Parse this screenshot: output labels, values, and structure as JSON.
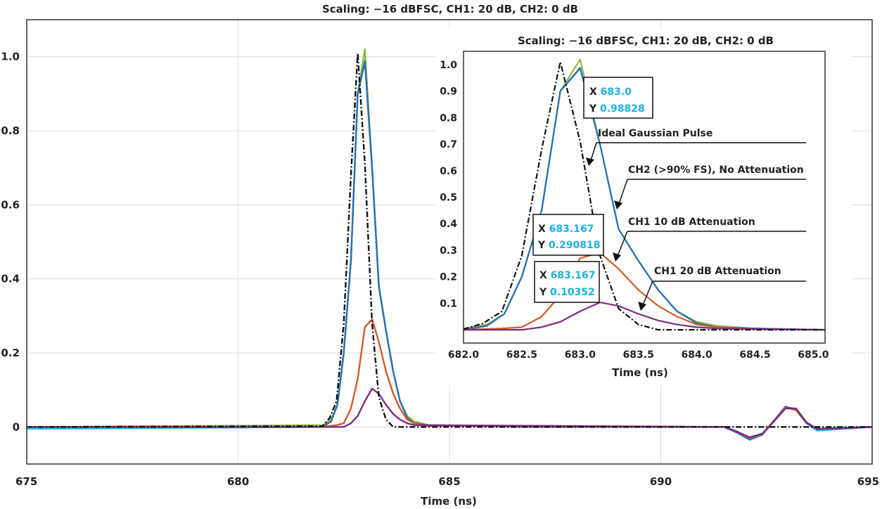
{
  "chart_data": [
    {
      "type": "line",
      "title": "Scaling: −16 dBFSC, CH1: 20 dB, CH2: 0 dB",
      "xlabel": "Time (ns)",
      "ylabel": "",
      "xlim": [
        675,
        695
      ],
      "ylim": [
        -0.1,
        1.1
      ],
      "x_ticks": [
        "675",
        "680",
        "685",
        "690",
        "695"
      ],
      "y_ticks": [
        "0",
        "0.2",
        "0.4",
        "0.6",
        "0.8",
        "1.0"
      ],
      "grid": true,
      "series": [
        {
          "color": "#8dba3c",
          "dash": "solid",
          "points": [
            [
              675,
              0
            ],
            [
              682,
              0.005
            ],
            [
              682.2,
              0.02
            ],
            [
              682.35,
              0.06
            ],
            [
              682.5,
              0.2
            ],
            [
              682.67,
              0.45
            ],
            [
              682.83,
              0.9
            ],
            [
              683.0,
              1.02
            ],
            [
              683.17,
              0.7
            ],
            [
              683.33,
              0.38
            ],
            [
              683.5,
              0.26
            ],
            [
              683.67,
              0.15
            ],
            [
              683.83,
              0.07
            ],
            [
              684.0,
              0.03
            ],
            [
              684.17,
              0.015
            ],
            [
              684.5,
              0.005
            ],
            [
              687,
              0.0
            ],
            [
              691.5,
              0
            ],
            [
              691.8,
              -0.015
            ],
            [
              692.1,
              -0.032
            ],
            [
              692.4,
              -0.02
            ],
            [
              692.7,
              0.02
            ],
            [
              692.95,
              0.055
            ],
            [
              693.2,
              0.045
            ],
            [
              693.45,
              0.01
            ],
            [
              693.7,
              -0.005
            ],
            [
              695,
              0
            ]
          ]
        },
        {
          "color": "#20b8e8",
          "dash": "solid",
          "points": [
            [
              675,
              -0.005
            ],
            [
              682,
              0.0
            ],
            [
              682.2,
              0.015
            ],
            [
              682.35,
              0.06
            ],
            [
              682.5,
              0.2
            ],
            [
              682.67,
              0.45
            ],
            [
              682.83,
              0.9
            ],
            [
              683.0,
              0.985
            ],
            [
              683.17,
              0.7
            ],
            [
              683.33,
              0.38
            ],
            [
              683.5,
              0.26
            ],
            [
              683.67,
              0.15
            ],
            [
              683.83,
              0.07
            ],
            [
              684.0,
              0.025
            ],
            [
              684.17,
              0.01
            ],
            [
              684.5,
              0.005
            ],
            [
              687,
              0.0
            ],
            [
              691.5,
              0
            ],
            [
              691.8,
              -0.015
            ],
            [
              692.1,
              -0.035
            ],
            [
              692.4,
              -0.022
            ],
            [
              692.7,
              0.02
            ],
            [
              692.95,
              0.055
            ],
            [
              693.2,
              0.048
            ],
            [
              693.45,
              0.01
            ],
            [
              693.7,
              -0.01
            ],
            [
              695,
              0
            ]
          ]
        },
        {
          "color": "#2f6fad",
          "dash": "solid",
          "points": [
            [
              675,
              0
            ],
            [
              682,
              0.0
            ],
            [
              682.2,
              0.015
            ],
            [
              682.35,
              0.06
            ],
            [
              682.5,
              0.2
            ],
            [
              682.67,
              0.45
            ],
            [
              682.83,
              0.9
            ],
            [
              683.0,
              0.98828
            ],
            [
              683.17,
              0.7
            ],
            [
              683.33,
              0.38
            ],
            [
              683.5,
              0.26
            ],
            [
              683.67,
              0.15
            ],
            [
              683.83,
              0.07
            ],
            [
              684.0,
              0.025
            ],
            [
              684.17,
              0.01
            ],
            [
              684.5,
              0.005
            ],
            [
              687,
              0.0
            ],
            [
              691.5,
              0
            ],
            [
              691.8,
              -0.015
            ],
            [
              692.1,
              -0.033
            ],
            [
              692.4,
              -0.02
            ],
            [
              692.7,
              0.02
            ],
            [
              692.95,
              0.055
            ],
            [
              693.2,
              0.046
            ],
            [
              693.45,
              0.01
            ],
            [
              693.7,
              -0.006
            ],
            [
              695,
              0
            ]
          ]
        },
        {
          "color": "#d05a2a",
          "dash": "solid",
          "points": [
            [
              675,
              0
            ],
            [
              682,
              0
            ],
            [
              682.33,
              0.005
            ],
            [
              682.5,
              0.01
            ],
            [
              682.67,
              0.05
            ],
            [
              682.83,
              0.13
            ],
            [
              683.0,
              0.27
            ],
            [
              683.17,
              0.290818
            ],
            [
              683.33,
              0.23
            ],
            [
              683.5,
              0.15
            ],
            [
              683.67,
              0.09
            ],
            [
              683.83,
              0.05
            ],
            [
              684.0,
              0.02
            ],
            [
              684.17,
              0.01
            ],
            [
              684.5,
              0.003
            ],
            [
              691.5,
              0
            ],
            [
              691.8,
              -0.012
            ],
            [
              692.1,
              -0.03
            ],
            [
              692.4,
              -0.02
            ],
            [
              692.7,
              0.018
            ],
            [
              692.95,
              0.052
            ],
            [
              693.2,
              0.046
            ],
            [
              693.45,
              0.012
            ],
            [
              693.7,
              -0.005
            ],
            [
              695,
              0
            ]
          ]
        },
        {
          "color": "#7b2c7f",
          "dash": "solid",
          "points": [
            [
              675,
              0
            ],
            [
              682,
              0
            ],
            [
              682.5,
              0.0
            ],
            [
              682.67,
              0.01
            ],
            [
              682.83,
              0.03
            ],
            [
              683.0,
              0.07
            ],
            [
              683.17,
              0.10352
            ],
            [
              683.33,
              0.09
            ],
            [
              683.5,
              0.06
            ],
            [
              683.67,
              0.035
            ],
            [
              683.83,
              0.02
            ],
            [
              684.0,
              0.01
            ],
            [
              684.17,
              0.005
            ],
            [
              691.5,
              0
            ],
            [
              691.8,
              -0.012
            ],
            [
              692.1,
              -0.028
            ],
            [
              692.4,
              -0.018
            ],
            [
              692.7,
              0.018
            ],
            [
              692.95,
              0.05
            ],
            [
              693.2,
              0.05
            ],
            [
              693.45,
              0.012
            ],
            [
              693.7,
              -0.005
            ],
            [
              695,
              0
            ]
          ]
        },
        {
          "color": "#111111",
          "dash": "dashdot",
          "points": [
            [
              675,
              0
            ],
            [
              682,
              0.002
            ],
            [
              682.17,
              0.025
            ],
            [
              682.33,
              0.07
            ],
            [
              682.5,
              0.28
            ],
            [
              682.67,
              0.68
            ],
            [
              682.83,
              1.01
            ],
            [
              683.0,
              0.71
            ],
            [
              683.17,
              0.28
            ],
            [
              683.33,
              0.08
            ],
            [
              683.5,
              0.02
            ],
            [
              683.67,
              0.0
            ],
            [
              684,
              0
            ],
            [
              695,
              0
            ]
          ]
        }
      ]
    },
    {
      "type": "line",
      "title": "Scaling: −16 dBFSC, CH1: 20 dB, CH2: 0 dB",
      "xlabel": "Time (ns)",
      "ylabel": "",
      "xlim": [
        682,
        685.1
      ],
      "ylim": [
        -0.05,
        1.05
      ],
      "x_ticks": [
        "682.0",
        "682.5",
        "683.0",
        "683.5",
        "684.0",
        "684.5",
        "685.0"
      ],
      "y_ticks": [
        "0.1",
        "0.2",
        "0.3",
        "0.4",
        "0.5",
        "0.6",
        "0.7",
        "0.8",
        "0.9",
        "1.0"
      ],
      "grid": false,
      "annotations": [
        {
          "text": "Ideal Gaussian Pulse"
        },
        {
          "text": "CH2 (>90% FS), No Attenuation"
        },
        {
          "text": "CH1  10 dB Attenuation"
        },
        {
          "text": "CH1  20 dB Attenuation"
        }
      ],
      "readouts": [
        {
          "x_label": "X",
          "x_value": "683.0",
          "y_label": "Y",
          "y_value": "0.98828"
        },
        {
          "x_label": "X",
          "x_value": "683.167",
          "y_label": "Y",
          "y_value": "0.290818"
        },
        {
          "x_label": "X",
          "x_value": "683.167",
          "y_label": "Y",
          "y_value": "0.10352"
        }
      ]
    }
  ]
}
